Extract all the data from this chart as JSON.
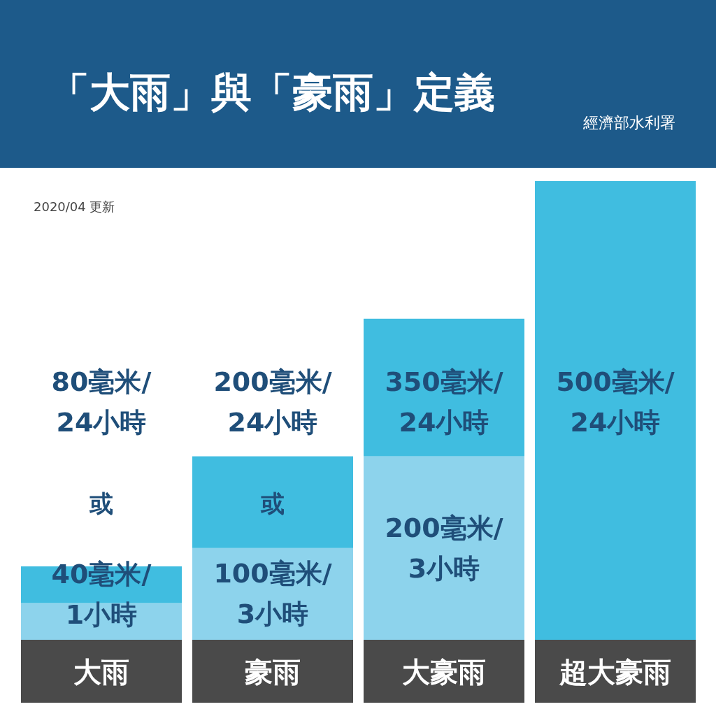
{
  "chart_data": {
    "type": "bar",
    "title": "「大雨」與「豪雨」定義",
    "subtitle": "2020/04 更新",
    "categories": [
      "大雨",
      "豪雨",
      "大豪雨",
      "超大豪雨"
    ],
    "stacked": true,
    "ylim": [
      0,
      500
    ],
    "series": [
      {
        "color": "#8dd3ec",
        "values": [
          40,
          100,
          200,
          null
        ],
        "value_labels": [
          "40毫米/\n1小時",
          "100毫米/\n3小時",
          "200毫米/\n3小時",
          null
        ]
      },
      {
        "color": "#40bde0",
        "values": [
          40,
          100,
          150,
          500
        ]
      }
    ],
    "annotations": [
      "80毫米/\n24小時",
      "200毫米/\n24小時",
      "350毫米/\n24小時",
      "500毫米/\n24小時",
      "或",
      "或",
      "經濟部水利署"
    ]
  }
}
